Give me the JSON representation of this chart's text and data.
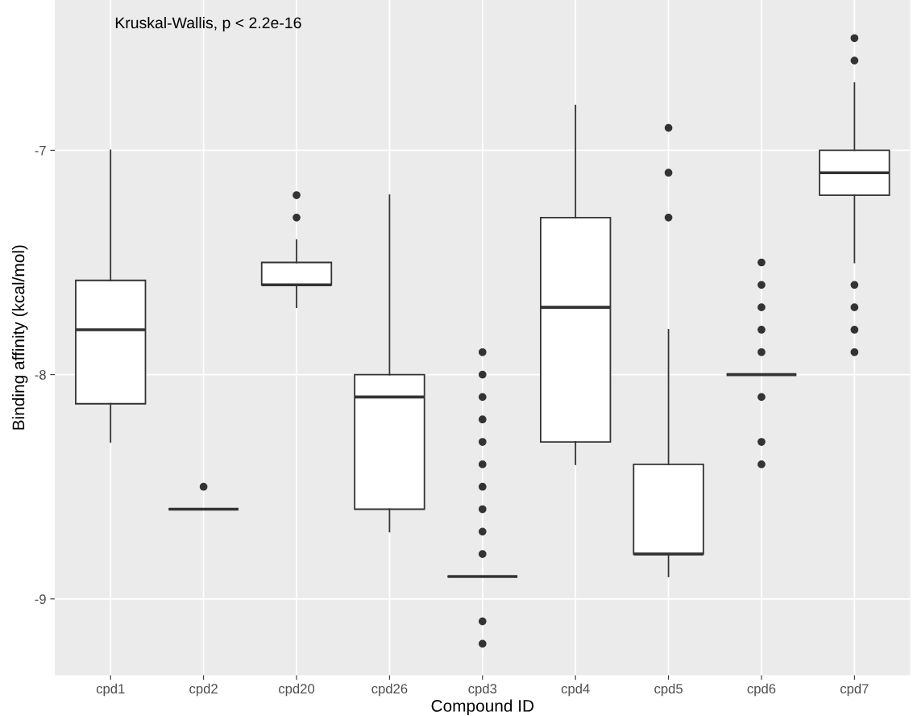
{
  "chart_data": {
    "type": "box",
    "xlabel": "Compound ID",
    "ylabel": "Binding affinity (kcal/mol)",
    "annotations": [
      "Kruskal-Wallis, p < 2.2e-16"
    ],
    "categories": [
      "cpd1",
      "cpd2",
      "cpd20",
      "cpd26",
      "cpd3",
      "cpd4",
      "cpd5",
      "cpd6",
      "cpd7"
    ],
    "boxes": [
      {
        "low": -8.3,
        "q1": -8.13,
        "median": -7.8,
        "q3": -7.58,
        "high": -7.0
      },
      {
        "low": -8.6,
        "q1": -8.6,
        "median": -8.6,
        "q3": -8.6,
        "high": -8.6,
        "outliers": [
          -8.5
        ]
      },
      {
        "low": -7.7,
        "q1": -7.6,
        "median": -7.6,
        "q3": -7.5,
        "high": -7.4,
        "outliers": [
          -7.2,
          -7.3
        ]
      },
      {
        "low": -8.7,
        "q1": -8.6,
        "median": -8.1,
        "q3": -8.0,
        "high": -7.2
      },
      {
        "low": -8.9,
        "q1": -8.9,
        "median": -8.9,
        "q3": -8.9,
        "high": -8.9,
        "outliers": [
          -7.9,
          -8.0,
          -8.1,
          -8.2,
          -8.3,
          -8.4,
          -8.5,
          -8.6,
          -8.7,
          -8.8,
          -9.1,
          -9.2
        ]
      },
      {
        "low": -8.4,
        "q1": -8.3,
        "median": -7.7,
        "q3": -7.3,
        "high": -6.8
      },
      {
        "low": -8.9,
        "q1": -8.8,
        "median": -8.8,
        "q3": -8.4,
        "high": -7.8,
        "outliers": [
          -6.9,
          -7.1,
          -7.3
        ]
      },
      {
        "low": -8.0,
        "q1": -8.0,
        "median": -8.0,
        "q3": -8.0,
        "high": -8.0,
        "outliers": [
          -7.5,
          -7.6,
          -7.7,
          -7.8,
          -7.9,
          -8.1,
          -8.3,
          -8.4
        ]
      },
      {
        "low": -7.5,
        "q1": -7.2,
        "median": -7.1,
        "q3": -7.0,
        "high": -6.7,
        "outliers": [
          -6.5,
          -6.6,
          -7.6,
          -7.7,
          -7.8,
          -7.9
        ]
      }
    ],
    "ylim": [
      -9.34,
      -6.33
    ],
    "yticks": [
      -9,
      -8,
      -7
    ],
    "grid": true
  }
}
